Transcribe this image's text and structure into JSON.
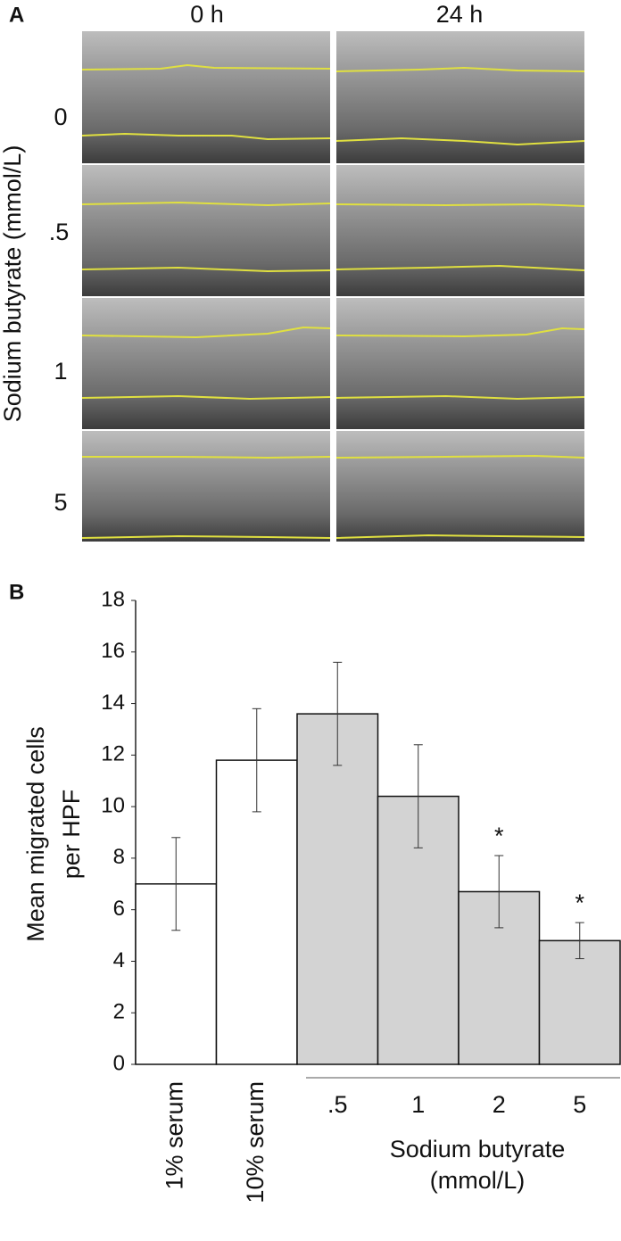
{
  "panel_a": {
    "label": "A",
    "columns": [
      "0 h",
      "24 h"
    ],
    "rows": [
      "0",
      ".5",
      "1",
      "5"
    ],
    "row_axis_label": "Sodium butyrate (mmol/L)"
  },
  "chart_data": {
    "type": "bar",
    "panel_label": "B",
    "ylabel": [
      "Mean migrated cells",
      "per HPF"
    ],
    "categories": [
      "1% serum",
      "10% serum",
      ".5",
      "1",
      "2",
      "5"
    ],
    "values": [
      7,
      11.8,
      13.6,
      10.4,
      6.7,
      4.8
    ],
    "errors": [
      1.8,
      2.0,
      2.0,
      2.0,
      1.4,
      0.7
    ],
    "annotations": [
      null,
      null,
      null,
      null,
      "*",
      "*"
    ],
    "colors": [
      "#ffffff",
      "#ffffff",
      "#d3d3d3",
      "#d3d3d3",
      "#d3d3d3",
      "#d3d3d3"
    ],
    "group_label": [
      "Sodium butyrate",
      "(mmol/L)"
    ],
    "ylim": [
      0,
      18
    ],
    "yticks": [
      0,
      2,
      4,
      6,
      8,
      10,
      12,
      14,
      16,
      18
    ],
    "grid": false
  }
}
